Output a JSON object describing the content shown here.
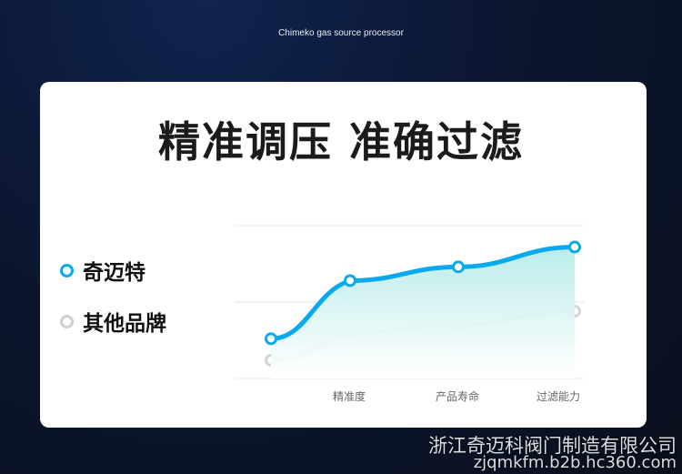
{
  "header": {
    "subtitle": "Chimeko gas source processor",
    "title": "精准调压 准确过滤"
  },
  "colors": {
    "brand": "#0aa8ec",
    "other": "#cfcfcf",
    "fill": "#bdeeee"
  },
  "chart_data": {
    "type": "line",
    "categories": [
      "",
      "精准度",
      "产品寿命",
      "过滤能力"
    ],
    "ylim": [
      0,
      100
    ],
    "grid": true,
    "legend_placement": "left",
    "series": [
      {
        "name": "奇迈特",
        "values": [
          26,
          64,
          73,
          86
        ],
        "color": "#0aa8ec",
        "area": true
      },
      {
        "name": "其他品牌",
        "values": [
          12,
          30,
          35,
          44
        ],
        "color": "#d4d4d4"
      }
    ]
  },
  "watermark": {
    "company": "浙江奇迈科阀门制造有限公司",
    "site": "zjqmkfm.b2b.hc360.com"
  }
}
